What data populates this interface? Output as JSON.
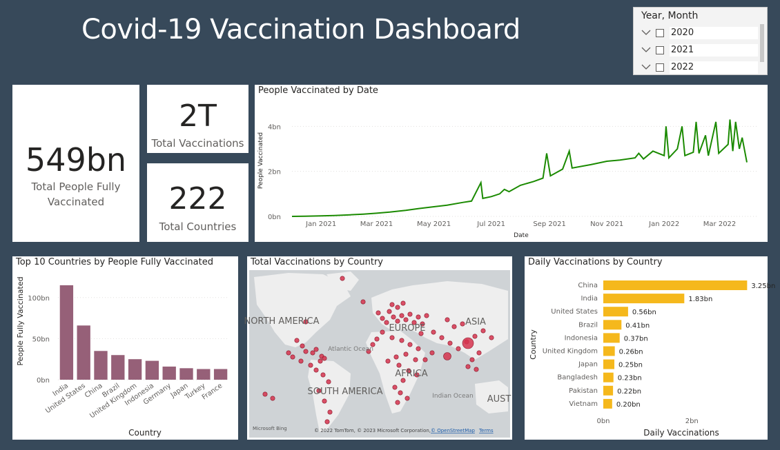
{
  "header": {
    "title": "Covid-19 Vaccination Dashboard"
  },
  "slicer": {
    "title": "Year, Month",
    "items": [
      {
        "label": "2020",
        "icon": "chevron-down-icon"
      },
      {
        "label": "2021",
        "icon": "chevron-down-icon"
      },
      {
        "label": "2022",
        "icon": "chevron-down-icon"
      }
    ]
  },
  "kpis": {
    "fully_vaccinated": {
      "value": "549bn",
      "label": "Total People Fully Vaccinated"
    },
    "total_vaccinations": {
      "value": "2T",
      "label": "Total Vaccinations"
    },
    "total_countries": {
      "value": "222",
      "label": "Total Countries"
    }
  },
  "colors": {
    "background": "#37495a",
    "line": "#1a8a00",
    "bar_purple": "#966078",
    "bar_yellow": "#f5b81c",
    "map_dot": "#d5334e"
  },
  "chart_data": [
    {
      "type": "line",
      "title": "People Vaccinated by Date",
      "xlabel": "Date",
      "ylabel": "People Vaccinated",
      "x_ticks": [
        "Jan 2021",
        "Mar 2021",
        "May 2021",
        "Jul 2021",
        "Sep 2021",
        "Nov 2021",
        "Jan 2022",
        "Mar 2022"
      ],
      "y_ticks": [
        "0bn",
        "2bn",
        "4bn"
      ],
      "ylim": [
        0,
        4.5
      ],
      "series": [
        {
          "points": [
            [
              "2020-12-01",
              0.0
            ],
            [
              "2020-12-15",
              0.01
            ],
            [
              "2021-01-01",
              0.02
            ],
            [
              "2021-01-15",
              0.04
            ],
            [
              "2021-02-01",
              0.07
            ],
            [
              "2021-02-15",
              0.1
            ],
            [
              "2021-03-01",
              0.14
            ],
            [
              "2021-03-15",
              0.19
            ],
            [
              "2021-04-01",
              0.27
            ],
            [
              "2021-04-15",
              0.35
            ],
            [
              "2021-05-01",
              0.43
            ],
            [
              "2021-05-15",
              0.5
            ],
            [
              "2021-06-01",
              0.62
            ],
            [
              "2021-06-10",
              0.68
            ],
            [
              "2021-06-20",
              1.5
            ],
            [
              "2021-06-22",
              0.8
            ],
            [
              "2021-07-01",
              0.88
            ],
            [
              "2021-07-10",
              1.0
            ],
            [
              "2021-07-15",
              1.2
            ],
            [
              "2021-07-20",
              1.1
            ],
            [
              "2021-08-01",
              1.38
            ],
            [
              "2021-08-15",
              1.55
            ],
            [
              "2021-08-25",
              1.7
            ],
            [
              "2021-08-29",
              2.8
            ],
            [
              "2021-09-02",
              1.8
            ],
            [
              "2021-09-15",
              2.1
            ],
            [
              "2021-09-22",
              2.9
            ],
            [
              "2021-09-25",
              2.15
            ],
            [
              "2021-10-15",
              2.3
            ],
            [
              "2021-11-01",
              2.45
            ],
            [
              "2021-11-15",
              2.5
            ],
            [
              "2021-12-01",
              2.6
            ],
            [
              "2021-12-05",
              2.8
            ],
            [
              "2021-12-10",
              2.55
            ],
            [
              "2021-12-20",
              2.9
            ],
            [
              "2022-01-01",
              2.7
            ],
            [
              "2022-01-03",
              4.0
            ],
            [
              "2022-01-06",
              2.6
            ],
            [
              "2022-01-15",
              3.0
            ],
            [
              "2022-01-20",
              4.0
            ],
            [
              "2022-01-23",
              2.7
            ],
            [
              "2022-02-01",
              2.85
            ],
            [
              "2022-02-04",
              4.2
            ],
            [
              "2022-02-07",
              2.8
            ],
            [
              "2022-02-14",
              3.6
            ],
            [
              "2022-02-17",
              2.7
            ],
            [
              "2022-02-25",
              4.2
            ],
            [
              "2022-02-28",
              2.8
            ],
            [
              "2022-03-10",
              3.2
            ],
            [
              "2022-03-12",
              4.3
            ],
            [
              "2022-03-15",
              2.9
            ],
            [
              "2022-03-18",
              4.2
            ],
            [
              "2022-03-22",
              3.0
            ],
            [
              "2022-03-25",
              3.5
            ],
            [
              "2022-03-30",
              2.4
            ]
          ]
        }
      ]
    },
    {
      "type": "bar",
      "title": "Top 10 Countries by People Fully Vaccinated",
      "xlabel": "Country",
      "ylabel": "People Fully Vaccinated",
      "categories": [
        "India",
        "United States",
        "China",
        "Brazil",
        "United Kingdom",
        "Indonesia",
        "Germany",
        "Japan",
        "Turkey",
        "France"
      ],
      "values": [
        115,
        66,
        35,
        30,
        25,
        23,
        16,
        14,
        13,
        13
      ],
      "y_ticks": [
        "0bn",
        "50bn",
        "100bn"
      ],
      "ylim": [
        0,
        125
      ]
    },
    {
      "type": "bar",
      "orientation": "horizontal",
      "title": "Daily Vaccinations by Country",
      "xlabel": "Daily Vaccinations",
      "ylabel": "Country",
      "categories": [
        "China",
        "India",
        "United States",
        "Brazil",
        "Indonesia",
        "United Kingdom",
        "Japan",
        "Bangladesh",
        "Pakistan",
        "Vietnam"
      ],
      "values": [
        3.25,
        1.83,
        0.56,
        0.41,
        0.37,
        0.26,
        0.25,
        0.23,
        0.22,
        0.2
      ],
      "labels": [
        "3.25bn",
        "1.83bn",
        "0.56bn",
        "0.41bn",
        "0.37bn",
        "0.26bn",
        "0.25bn",
        "0.23bn",
        "0.22bn",
        "0.20bn"
      ],
      "x_ticks": [
        "0bn",
        "2bn"
      ],
      "xlim": [
        0,
        3.4
      ]
    }
  ],
  "map": {
    "title": "Total Vaccinations by Country",
    "regions": [
      "NORTH AMERICA",
      "SOUTH AMERICA",
      "EUROPE",
      "AFRICA",
      "ASIA",
      "AUST"
    ],
    "oceans": [
      "Atlantic Ocean",
      "Indian Ocean"
    ],
    "brand": "Microsoft Bing",
    "attribution": "© 2022 TomTom, © 2023 Microsoft Corporation,",
    "osm_link": "© OpenStreetMap",
    "terms_link": "Terms"
  }
}
